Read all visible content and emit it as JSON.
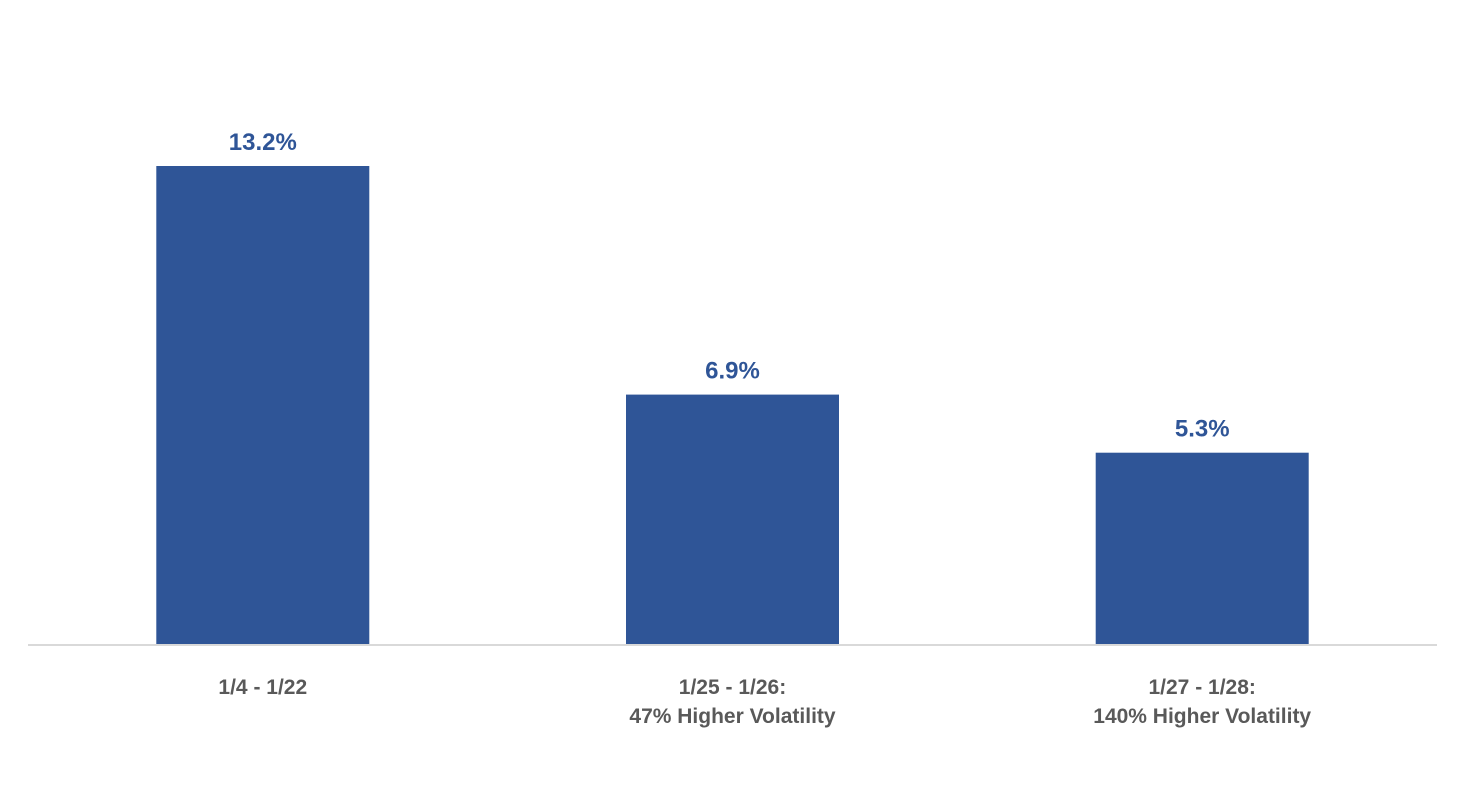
{
  "chart_data": {
    "type": "bar",
    "categories": [
      [
        "1/4 - 1/22"
      ],
      [
        "1/25 - 1/26:",
        "47% Higher Volatility"
      ],
      [
        "1/27 - 1/28:",
        "140% Higher Volatility"
      ]
    ],
    "values": [
      13.2,
      6.9,
      5.3
    ],
    "data_labels": [
      "13.2%",
      "6.9%",
      "5.3%"
    ],
    "title": "",
    "xlabel": "",
    "ylabel": "",
    "ylim": [
      0,
      14.5
    ],
    "grid": false,
    "legend": "none",
    "colors": {
      "bar": "#2f5597",
      "data_label": "#2f5597",
      "category_label": "#595959",
      "axis": "#d9d9d9"
    }
  }
}
